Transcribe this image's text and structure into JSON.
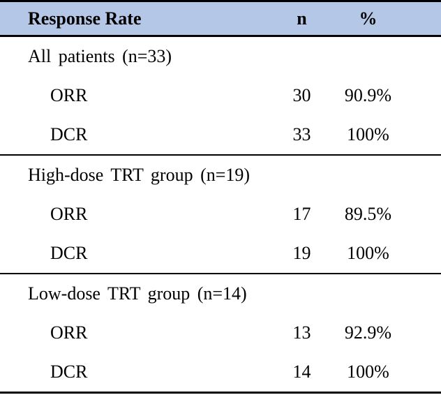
{
  "table": {
    "header": {
      "response_rate": "Response Rate",
      "n": "n",
      "percent": "%"
    },
    "sections": [
      {
        "title": "All patients (n=33)",
        "rows": [
          {
            "label": "ORR",
            "n": "30",
            "percent": "90.9%"
          },
          {
            "label": "DCR",
            "n": "33",
            "percent": "100%"
          }
        ]
      },
      {
        "title": "High-dose TRT group (n=19)",
        "rows": [
          {
            "label": "ORR",
            "n": "17",
            "percent": "89.5%"
          },
          {
            "label": "DCR",
            "n": "19",
            "percent": "100%"
          }
        ]
      },
      {
        "title": "Low-dose TRT group (n=14)",
        "rows": [
          {
            "label": "ORR",
            "n": "13",
            "percent": "92.9%"
          },
          {
            "label": "DCR",
            "n": "14",
            "percent": "100%"
          }
        ]
      }
    ],
    "colors": {
      "header_background": "#b4c7e7",
      "border": "#000000",
      "text": "#000000"
    }
  },
  "chart_data": {
    "type": "table",
    "title": "Response Rate",
    "columns": [
      "Response Rate",
      "n",
      "%"
    ],
    "rows": [
      [
        "All patients (n=33)",
        "",
        ""
      ],
      [
        "ORR",
        "30",
        "90.9%"
      ],
      [
        "DCR",
        "33",
        "100%"
      ],
      [
        "High-dose TRT group (n=19)",
        "",
        ""
      ],
      [
        "ORR",
        "17",
        "89.5%"
      ],
      [
        "DCR",
        "19",
        "100%"
      ],
      [
        "Low-dose TRT group (n=14)",
        "",
        ""
      ],
      [
        "ORR",
        "13",
        "92.9%"
      ],
      [
        "DCR",
        "14",
        "100%"
      ]
    ]
  }
}
